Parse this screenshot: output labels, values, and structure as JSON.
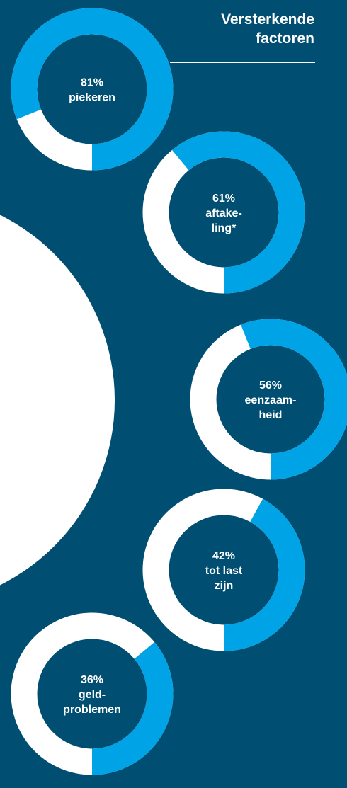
{
  "heading": {
    "line1": "Versterkende",
    "line2": "factoren"
  },
  "colors": {
    "background": "#004f72",
    "highlight": "#00a3e6",
    "remainder": "#ffffff",
    "text": "#ffffff"
  },
  "chart_data": {
    "type": "pie",
    "title": "Versterkende factoren",
    "series": [
      {
        "percent": 81,
        "label_percent": "81%",
        "label_lines": [
          "piekeren"
        ]
      },
      {
        "percent": 61,
        "label_percent": "61%",
        "label_lines": [
          "aftake-",
          "ling*"
        ]
      },
      {
        "percent": 56,
        "label_percent": "56%",
        "label_lines": [
          "eenzaam-",
          "heid"
        ]
      },
      {
        "percent": 42,
        "label_percent": "42%",
        "label_lines": [
          "tot last",
          "zijn"
        ]
      },
      {
        "percent": 36,
        "label_percent": "36%",
        "label_lines": [
          "geld-",
          "problemen"
        ]
      }
    ]
  }
}
